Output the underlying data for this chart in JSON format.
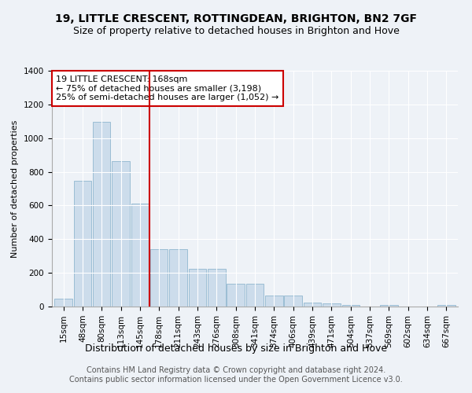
{
  "title1": "19, LITTLE CRESCENT, ROTTINGDEAN, BRIGHTON, BN2 7GF",
  "title2": "Size of property relative to detached houses in Brighton and Hove",
  "xlabel": "Distribution of detached houses by size in Brighton and Hove",
  "ylabel": "Number of detached properties",
  "categories": [
    "15sqm",
    "48sqm",
    "80sqm",
    "113sqm",
    "145sqm",
    "178sqm",
    "211sqm",
    "243sqm",
    "276sqm",
    "308sqm",
    "341sqm",
    "374sqm",
    "406sqm",
    "439sqm",
    "471sqm",
    "504sqm",
    "537sqm",
    "569sqm",
    "602sqm",
    "634sqm",
    "667sqm"
  ],
  "values": [
    48,
    748,
    1095,
    862,
    612,
    340,
    340,
    225,
    225,
    135,
    135,
    65,
    65,
    22,
    20,
    10,
    0,
    8,
    0,
    0,
    10
  ],
  "bar_color": "#ccdceb",
  "bar_edge_color": "#9abdd4",
  "vline_x": 4.5,
  "vline_color": "#cc0000",
  "annotation_text": "19 LITTLE CRESCENT: 168sqm\n← 75% of detached houses are smaller (3,198)\n25% of semi-detached houses are larger (1,052) →",
  "annotation_box_color": "#ffffff",
  "annotation_box_edge": "#cc0000",
  "ylim": [
    0,
    1400
  ],
  "yticks": [
    0,
    200,
    400,
    600,
    800,
    1000,
    1200,
    1400
  ],
  "footer": "Contains HM Land Registry data © Crown copyright and database right 2024.\nContains public sector information licensed under the Open Government Licence v3.0.",
  "bg_color": "#eef2f7",
  "title1_fontsize": 10,
  "title2_fontsize": 9,
  "xlabel_fontsize": 9,
  "ylabel_fontsize": 8,
  "footer_fontsize": 7,
  "annotation_fontsize": 8,
  "tick_fontsize": 7.5
}
